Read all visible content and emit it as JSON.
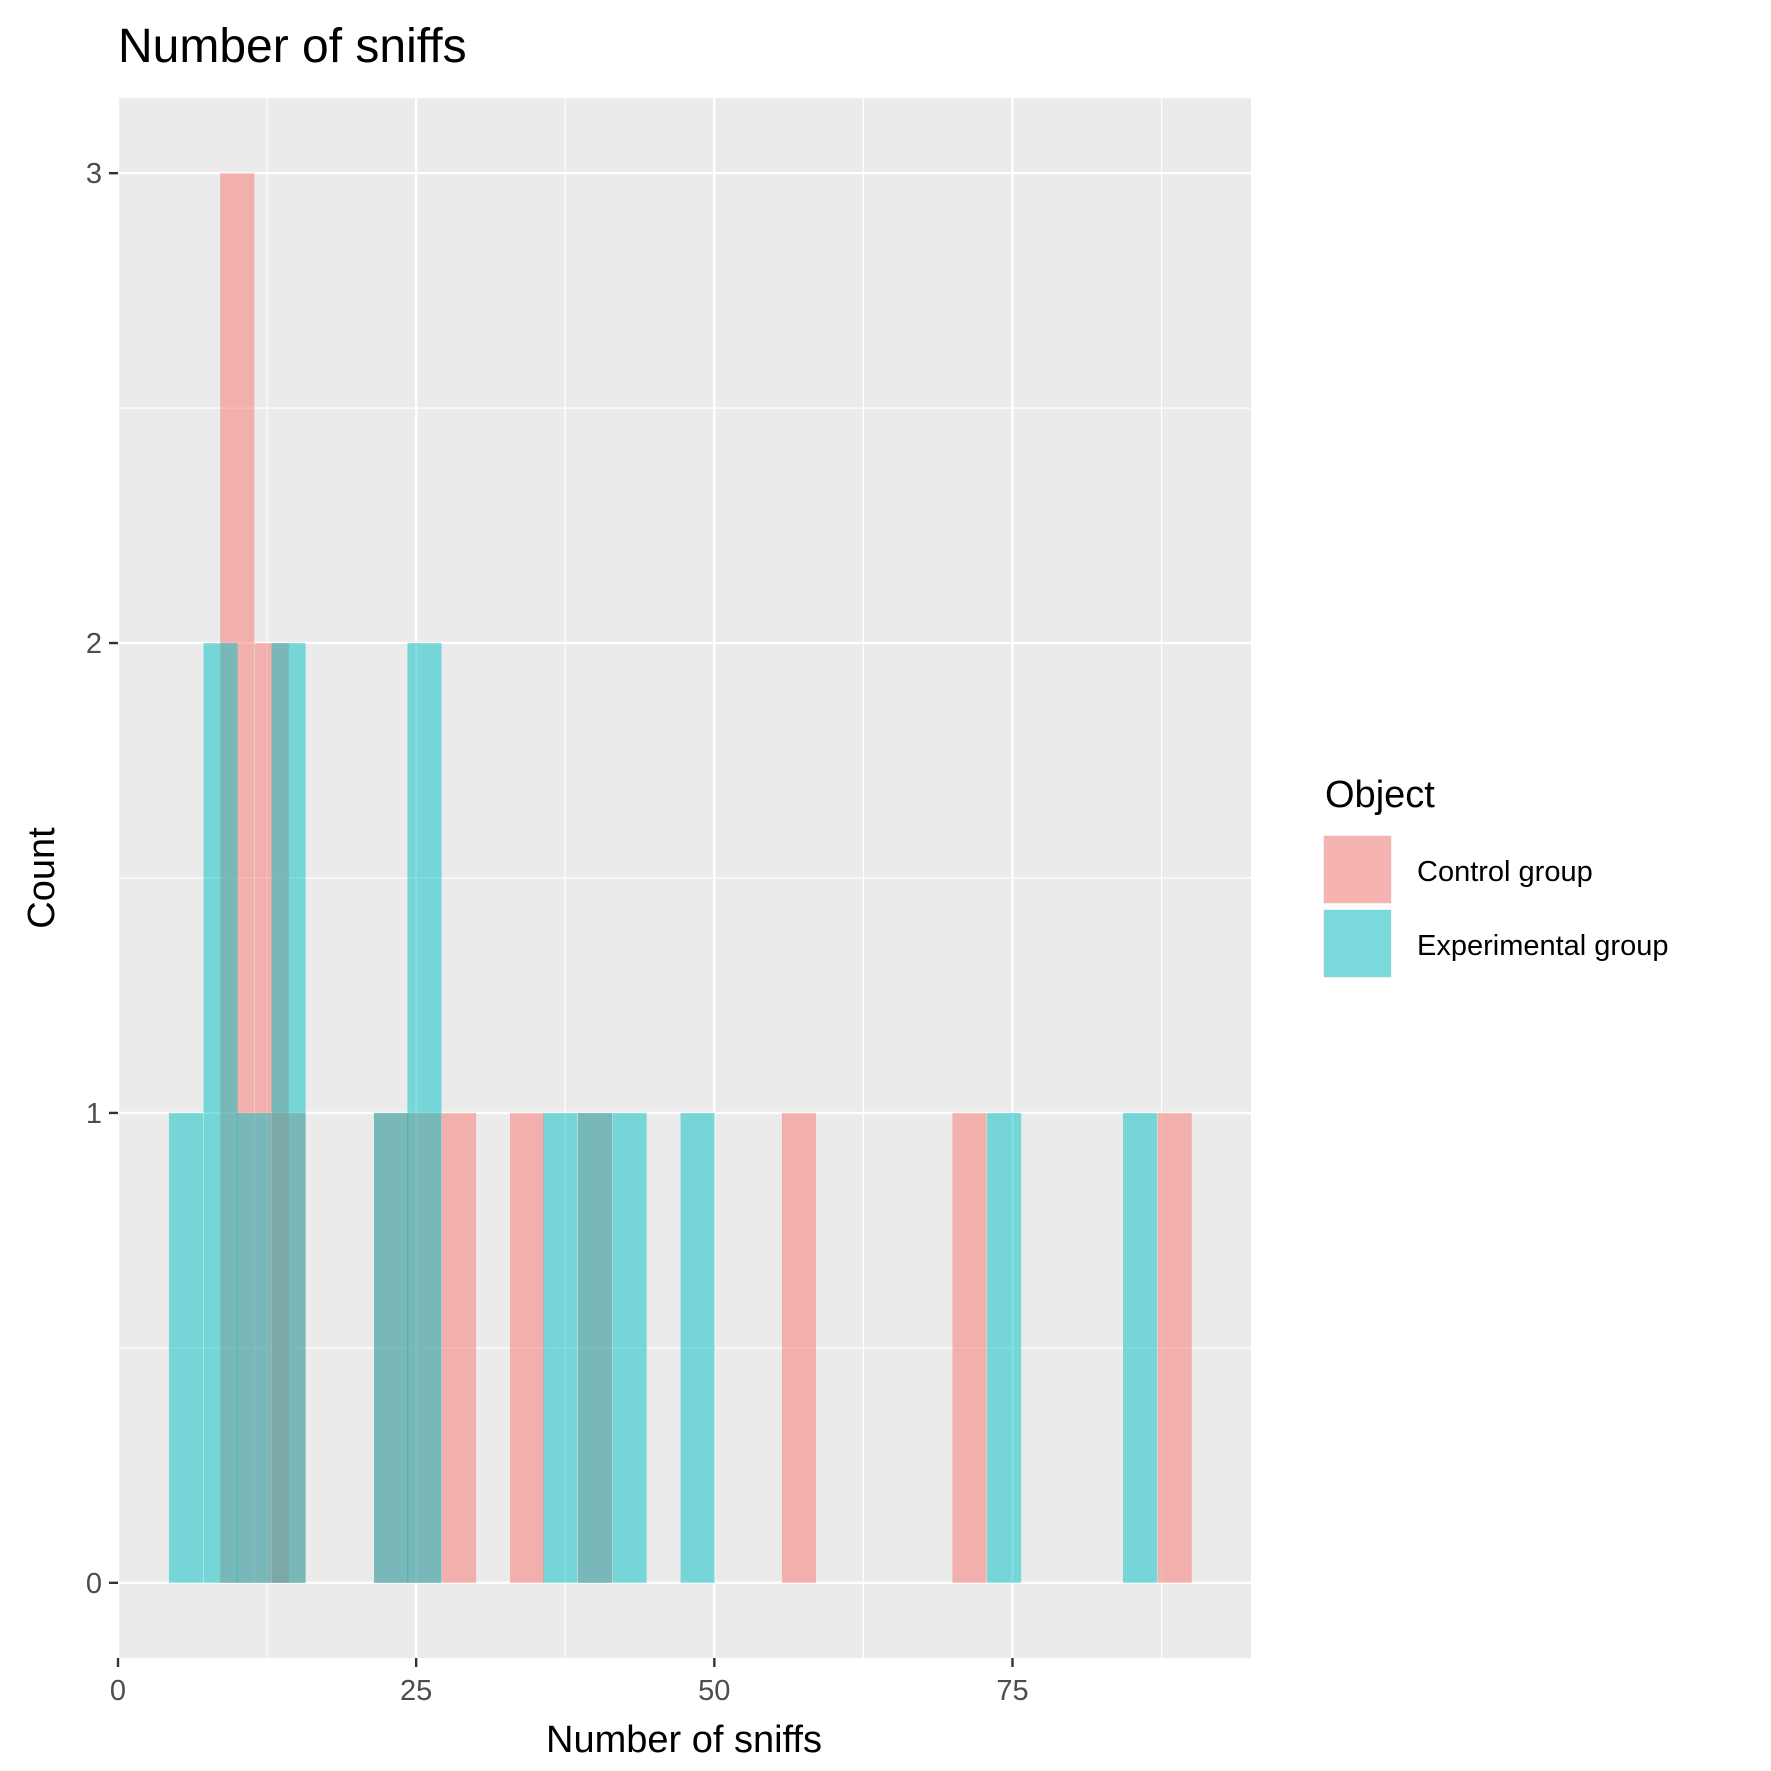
{
  "chart_data": {
    "type": "bar",
    "title": "Number of sniffs",
    "xlabel": "Number of sniffs",
    "ylabel": "Count",
    "xlim": [
      0,
      95
    ],
    "ylim": [
      -0.16,
      3.16
    ],
    "x_ticks": [
      0,
      25,
      50,
      75
    ],
    "y_ticks": [
      0,
      1,
      2,
      3
    ],
    "grid": true,
    "legend_position": "right",
    "legend_title": "Object",
    "bin_width": 2.86,
    "series": [
      {
        "name": "Control group",
        "color": "#F8766D",
        "bins": [
          {
            "x": 10.0,
            "count": 3
          },
          {
            "x": 12.9,
            "count": 2
          },
          {
            "x": 14.3,
            "count": 1
          },
          {
            "x": 22.9,
            "count": 1
          },
          {
            "x": 25.7,
            "count": 1
          },
          {
            "x": 28.6,
            "count": 1
          },
          {
            "x": 34.3,
            "count": 1
          },
          {
            "x": 40.0,
            "count": 1
          },
          {
            "x": 57.1,
            "count": 1
          },
          {
            "x": 71.4,
            "count": 1
          },
          {
            "x": 88.6,
            "count": 1
          }
        ]
      },
      {
        "name": "Experimental group",
        "color": "#00BFC4",
        "bins": [
          {
            "x": 5.7,
            "count": 1
          },
          {
            "x": 8.6,
            "count": 2
          },
          {
            "x": 11.4,
            "count": 1
          },
          {
            "x": 14.3,
            "count": 2
          },
          {
            "x": 22.9,
            "count": 1
          },
          {
            "x": 25.7,
            "count": 2
          },
          {
            "x": 37.1,
            "count": 1
          },
          {
            "x": 40.0,
            "count": 1
          },
          {
            "x": 42.9,
            "count": 1
          },
          {
            "x": 48.6,
            "count": 1
          },
          {
            "x": 74.3,
            "count": 1
          },
          {
            "x": 85.7,
            "count": 1
          }
        ]
      }
    ]
  }
}
